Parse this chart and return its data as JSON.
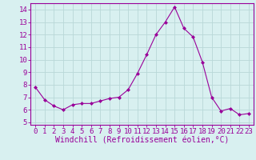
{
  "x": [
    0,
    1,
    2,
    3,
    4,
    5,
    6,
    7,
    8,
    9,
    10,
    11,
    12,
    13,
    14,
    15,
    16,
    17,
    18,
    19,
    20,
    21,
    22,
    23
  ],
  "y": [
    7.8,
    6.8,
    6.3,
    6.0,
    6.4,
    6.5,
    6.5,
    6.7,
    6.9,
    7.0,
    7.6,
    8.9,
    10.4,
    12.0,
    13.0,
    14.2,
    12.5,
    11.8,
    9.8,
    7.0,
    5.9,
    6.1,
    5.6,
    5.7
  ],
  "line_color": "#990099",
  "marker": "D",
  "marker_size": 2.0,
  "background_color": "#d8f0f0",
  "grid_color": "#b8d8d8",
  "tick_label_color": "#990099",
  "xlabel": "Windchill (Refroidissement éolien,°C)",
  "xlabel_color": "#990099",
  "ylabel_ticks": [
    5,
    6,
    7,
    8,
    9,
    10,
    11,
    12,
    13,
    14
  ],
  "xlim": [
    -0.5,
    23.5
  ],
  "ylim": [
    4.8,
    14.5
  ],
  "xticks": [
    0,
    1,
    2,
    3,
    4,
    5,
    6,
    7,
    8,
    9,
    10,
    11,
    12,
    13,
    14,
    15,
    16,
    17,
    18,
    19,
    20,
    21,
    22,
    23
  ],
  "font_size": 6.5,
  "xlabel_font_size": 7.0,
  "spine_color": "#990099"
}
